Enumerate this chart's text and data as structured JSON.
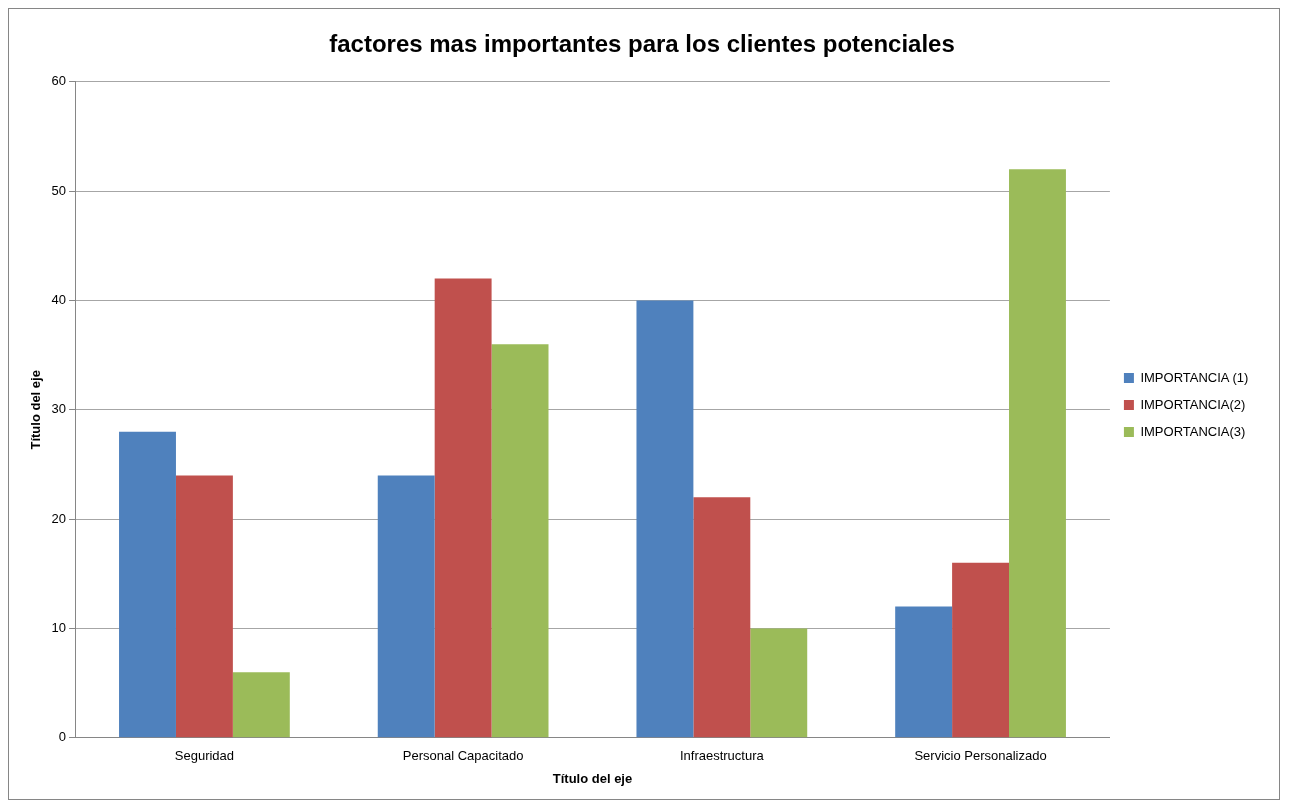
{
  "chart_data": {
    "type": "bar",
    "title": "factores mas importantes para los clientes potenciales",
    "xlabel": "Título del eje",
    "ylabel": "Título del eje",
    "categories": [
      "Seguridad",
      "Personal Capacitado",
      "Infraestructura",
      "Servicio Personalizado"
    ],
    "series": [
      {
        "name": "IMPORTANCIA (1)",
        "color": "#4f81bd",
        "values": [
          28,
          24,
          40,
          12
        ]
      },
      {
        "name": "IMPORTANCIA(2)",
        "color": "#c0504d",
        "values": [
          24,
          42,
          22,
          16
        ]
      },
      {
        "name": "IMPORTANCIA(3)",
        "color": "#9bbb59",
        "values": [
          6,
          36,
          10,
          52
        ]
      }
    ],
    "ylim": [
      0,
      60
    ],
    "yticks": [
      0,
      10,
      20,
      30,
      40,
      50,
      60
    ],
    "grid": "y",
    "legend": "right"
  }
}
